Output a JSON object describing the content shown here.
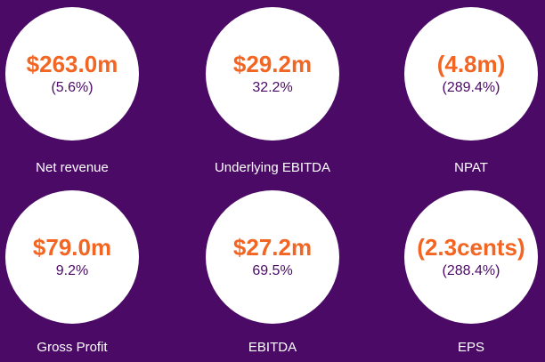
{
  "colors": {
    "background": "#4a0a66",
    "value": "#f26522",
    "change": "#4a0a66",
    "label": "#ffffff"
  },
  "metrics": [
    {
      "value": "$263.0m",
      "change": "(5.6%)",
      "label": "Net revenue"
    },
    {
      "value": "$29.2m",
      "change": "32.2%",
      "label": "Underlying EBITDA"
    },
    {
      "value": "(4.8m)",
      "change": "(289.4%)",
      "label": "NPAT"
    },
    {
      "value": "$79.0m",
      "change": "9.2%",
      "label": "Gross Profit"
    },
    {
      "value": "$27.2m",
      "change": "69.5%",
      "label": "EBITDA"
    },
    {
      "value": "(2.3cents)",
      "change": "(288.4%)",
      "label": "EPS"
    }
  ]
}
